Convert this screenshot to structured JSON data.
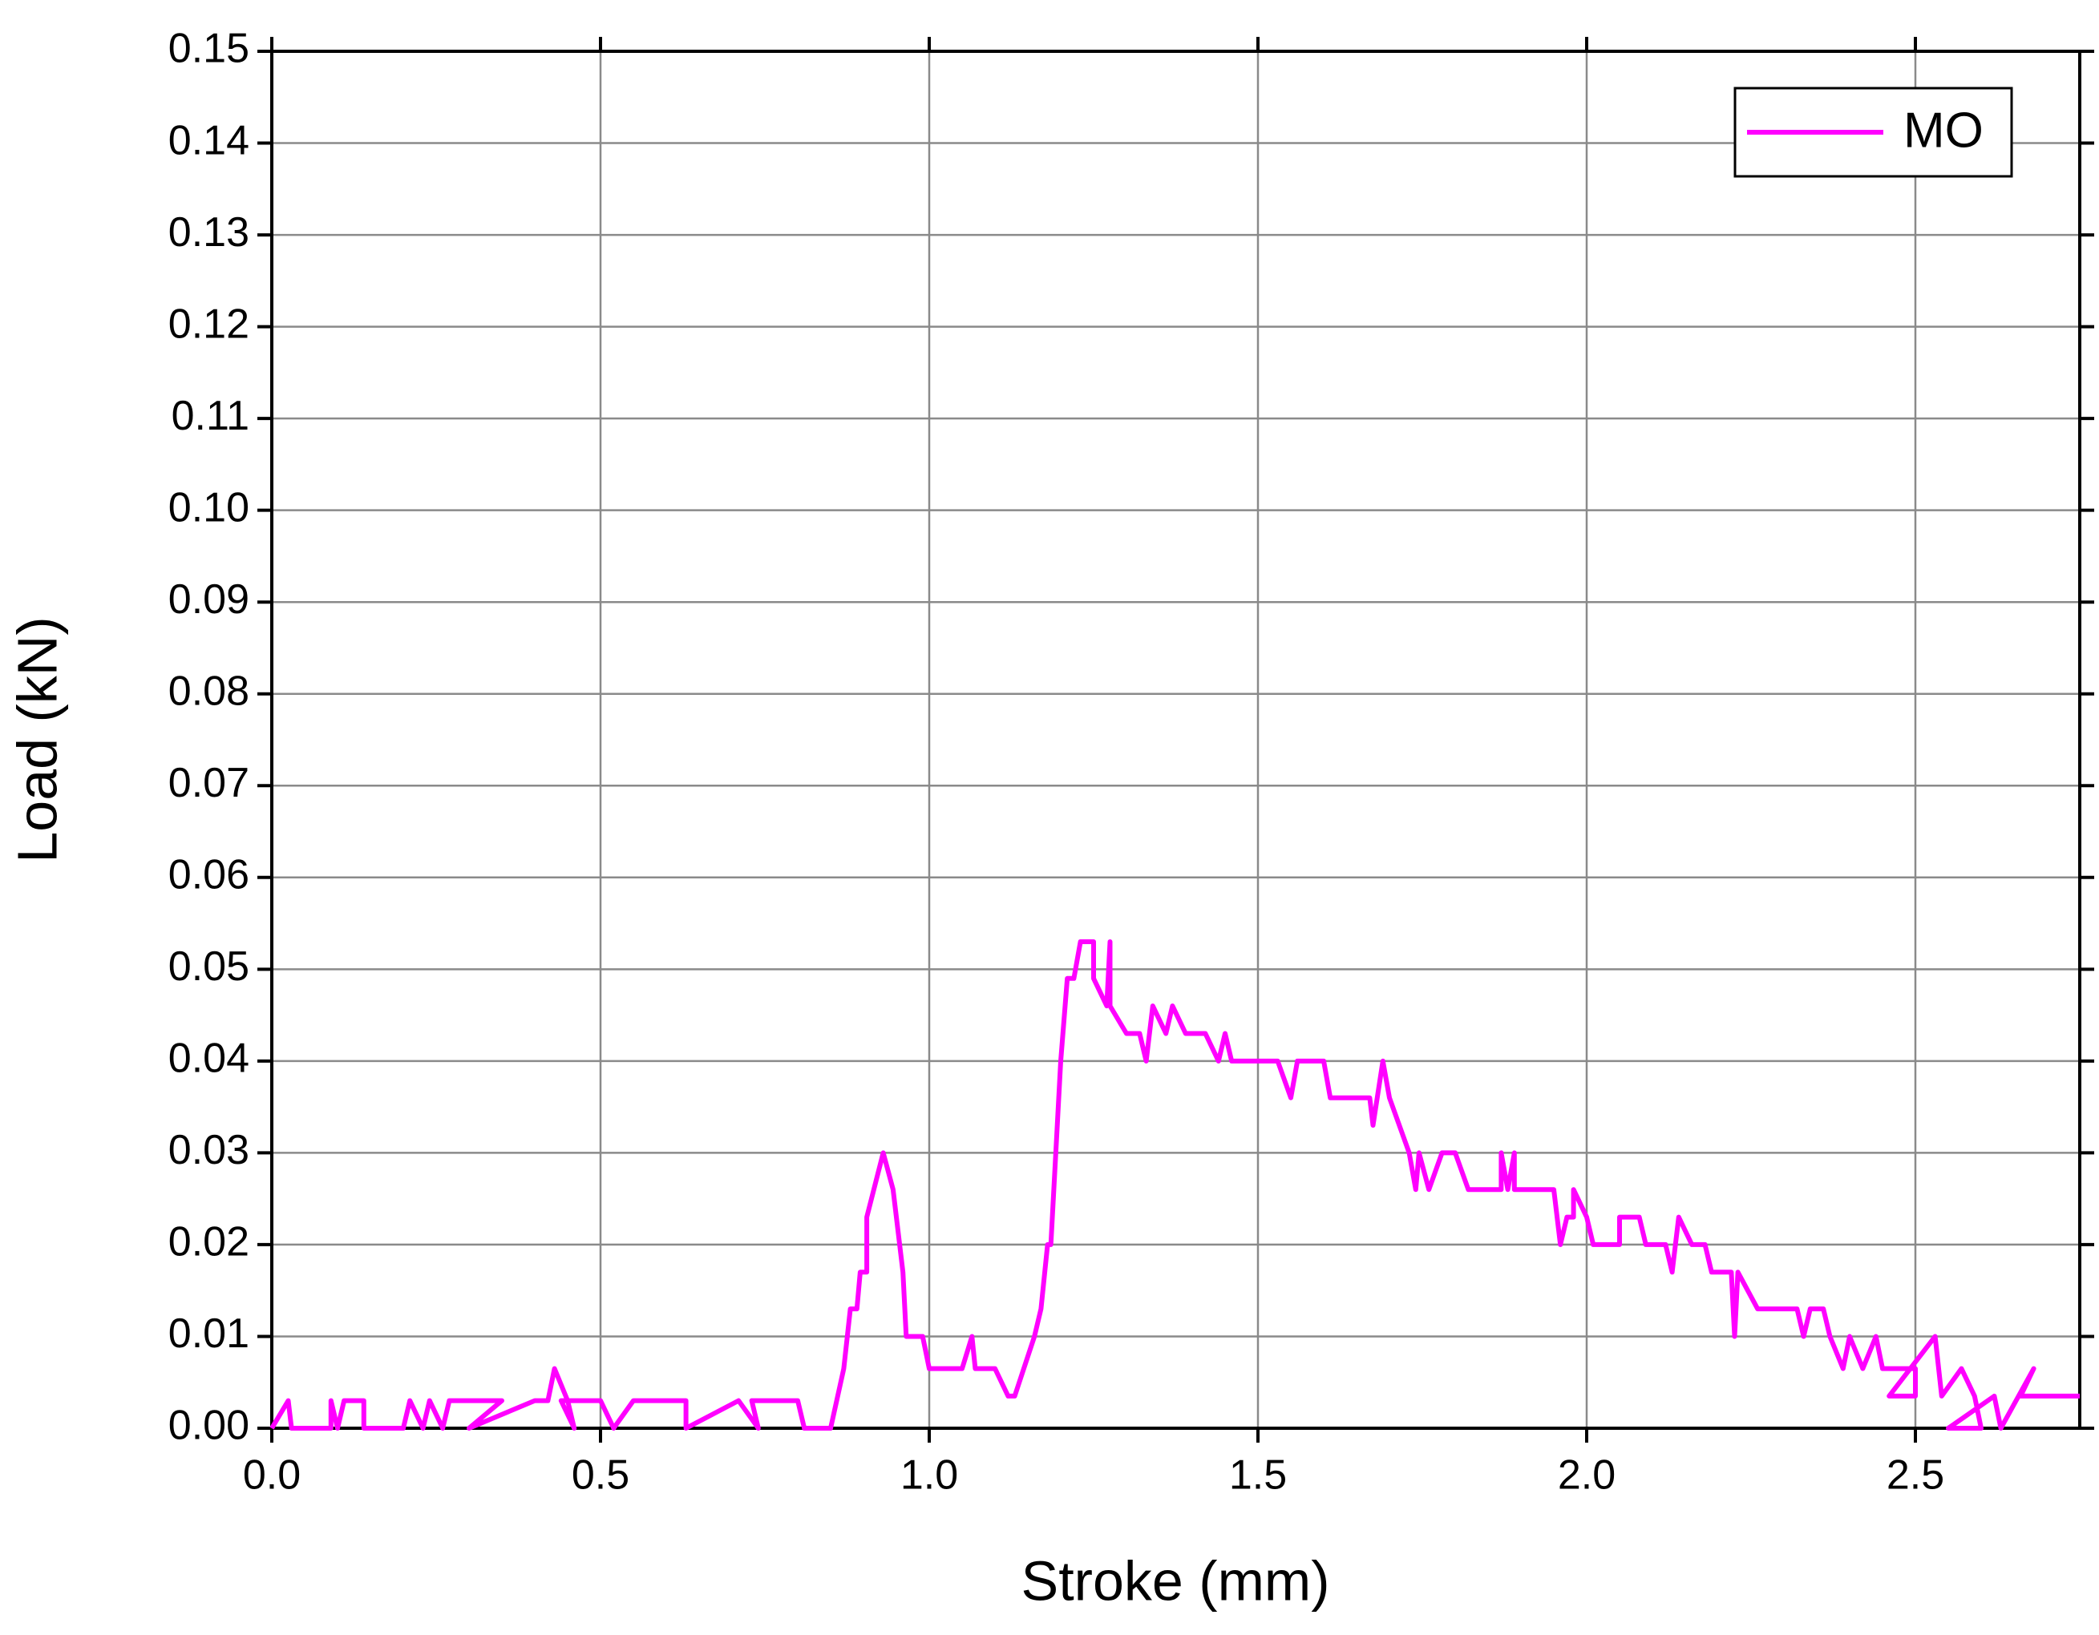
{
  "chart_data": {
    "type": "line",
    "xlabel": "Stroke (mm)",
    "ylabel": "Load (kN)",
    "xlim": [
      0,
      2.75
    ],
    "ylim": [
      0,
      0.15
    ],
    "xticks": [
      {
        "value": 0,
        "label": "0.0"
      },
      {
        "value": 0.5,
        "label": "0.5"
      },
      {
        "value": 1,
        "label": "1.0"
      },
      {
        "value": 1.5,
        "label": "1.5"
      },
      {
        "value": 2,
        "label": "2.0"
      },
      {
        "value": 2.5,
        "label": "2.5"
      }
    ],
    "yticks": [
      {
        "value": 0,
        "label": "0.00"
      },
      {
        "value": 0.01,
        "label": "0.01"
      },
      {
        "value": 0.02,
        "label": "0.02"
      },
      {
        "value": 0.03,
        "label": "0.03"
      },
      {
        "value": 0.04,
        "label": "0.04"
      },
      {
        "value": 0.05,
        "label": "0.05"
      },
      {
        "value": 0.06,
        "label": "0.06"
      },
      {
        "value": 0.07,
        "label": "0.07"
      },
      {
        "value": 0.08,
        "label": "0.08"
      },
      {
        "value": 0.09,
        "label": "0.09"
      },
      {
        "value": 0.1,
        "label": "0.10"
      },
      {
        "value": 0.11,
        "label": "0.11"
      },
      {
        "value": 0.12,
        "label": "0.12"
      },
      {
        "value": 0.13,
        "label": "0.13"
      },
      {
        "value": 0.14,
        "label": "0.14"
      },
      {
        "value": 0.15,
        "label": "0.15"
      }
    ],
    "grid": true,
    "legend": "upper right",
    "x": [
      0,
      0.025,
      0.03,
      0.09,
      0.09,
      0.1,
      0.11,
      0.14,
      0.14,
      0.2,
      0.21,
      0.23,
      0.24,
      0.26,
      0.27,
      0.35,
      0.3,
      0.4,
      0.42,
      0.43,
      0.45,
      0.46,
      0.44,
      0.5,
      0.52,
      0.55,
      0.63,
      0.63,
      0.71,
      0.74,
      0.73,
      0.8,
      0.81,
      0.85,
      0.87,
      0.88,
      0.89,
      0.895,
      0.905,
      0.905,
      0.93,
      0.945,
      0.96,
      0.965,
      0.99,
      1.0,
      1.05,
      1.065,
      1.07,
      1.1,
      1.12,
      1.13,
      1.16,
      1.17,
      1.18,
      1.185,
      1.2,
      1.21,
      1.22,
      1.23,
      1.25,
      1.25,
      1.27,
      1.275,
      1.275,
      1.3,
      1.32,
      1.33,
      1.34,
      1.36,
      1.37,
      1.39,
      1.42,
      1.44,
      1.45,
      1.46,
      1.53,
      1.55,
      1.56,
      1.6,
      1.61,
      1.67,
      1.675,
      1.69,
      1.7,
      1.73,
      1.74,
      1.745,
      1.76,
      1.78,
      1.8,
      1.82,
      1.87,
      1.87,
      1.88,
      1.89,
      1.89,
      1.95,
      1.96,
      1.97,
      1.98,
      1.98,
      2.0,
      2.01,
      2.05,
      2.05,
      2.08,
      2.09,
      2.12,
      2.13,
      2.14,
      2.16,
      2.18,
      2.19,
      2.22,
      2.225,
      2.23,
      2.26,
      2.3,
      2.32,
      2.33,
      2.34,
      2.36,
      2.37,
      2.39,
      2.4,
      2.42,
      2.44,
      2.45,
      2.5,
      2.5,
      2.46,
      2.53,
      2.54,
      2.57,
      2.59,
      2.6,
      2.55,
      2.62,
      2.63,
      2.68,
      2.66,
      2.75
    ],
    "series": [
      {
        "name": "MO",
        "color": "#ff00ff",
        "values": [
          0,
          0.003,
          0,
          0,
          0.003,
          0,
          0.003,
          0.003,
          0,
          0,
          0.003,
          0,
          0.003,
          0,
          0.003,
          0.003,
          0,
          0.003,
          0.003,
          0.0065,
          0.003,
          0,
          0.003,
          0.003,
          0,
          0.003,
          0.003,
          0,
          0.003,
          0,
          0.003,
          0.003,
          0,
          0,
          0.0065,
          0.013,
          0.013,
          0.017,
          0.017,
          0.023,
          0.03,
          0.026,
          0.017,
          0.01,
          0.01,
          0.0065,
          0.0065,
          0.01,
          0.0065,
          0.0065,
          0.0035,
          0.0035,
          0.01,
          0.013,
          0.02,
          0.02,
          0.04,
          0.049,
          0.049,
          0.053,
          0.053,
          0.049,
          0.046,
          0.053,
          0.046,
          0.043,
          0.043,
          0.04,
          0.046,
          0.043,
          0.046,
          0.043,
          0.043,
          0.04,
          0.043,
          0.04,
          0.04,
          0.036,
          0.04,
          0.04,
          0.036,
          0.036,
          0.033,
          0.04,
          0.036,
          0.03,
          0.026,
          0.03,
          0.026,
          0.03,
          0.03,
          0.026,
          0.026,
          0.03,
          0.026,
          0.03,
          0.026,
          0.026,
          0.02,
          0.023,
          0.023,
          0.026,
          0.023,
          0.02,
          0.02,
          0.023,
          0.023,
          0.02,
          0.02,
          0.017,
          0.023,
          0.02,
          0.02,
          0.017,
          0.017,
          0.01,
          0.017,
          0.013,
          0.013,
          0.013,
          0.01,
          0.013,
          0.013,
          0.01,
          0.0065,
          0.01,
          0.0065,
          0.01,
          0.0065,
          0.0065,
          0.0035,
          0.0035,
          0.01,
          0.0035,
          0.0065,
          0.0035,
          0,
          0,
          0.0035,
          0,
          0.0065,
          0.0035,
          0.0035
        ]
      }
    ]
  }
}
